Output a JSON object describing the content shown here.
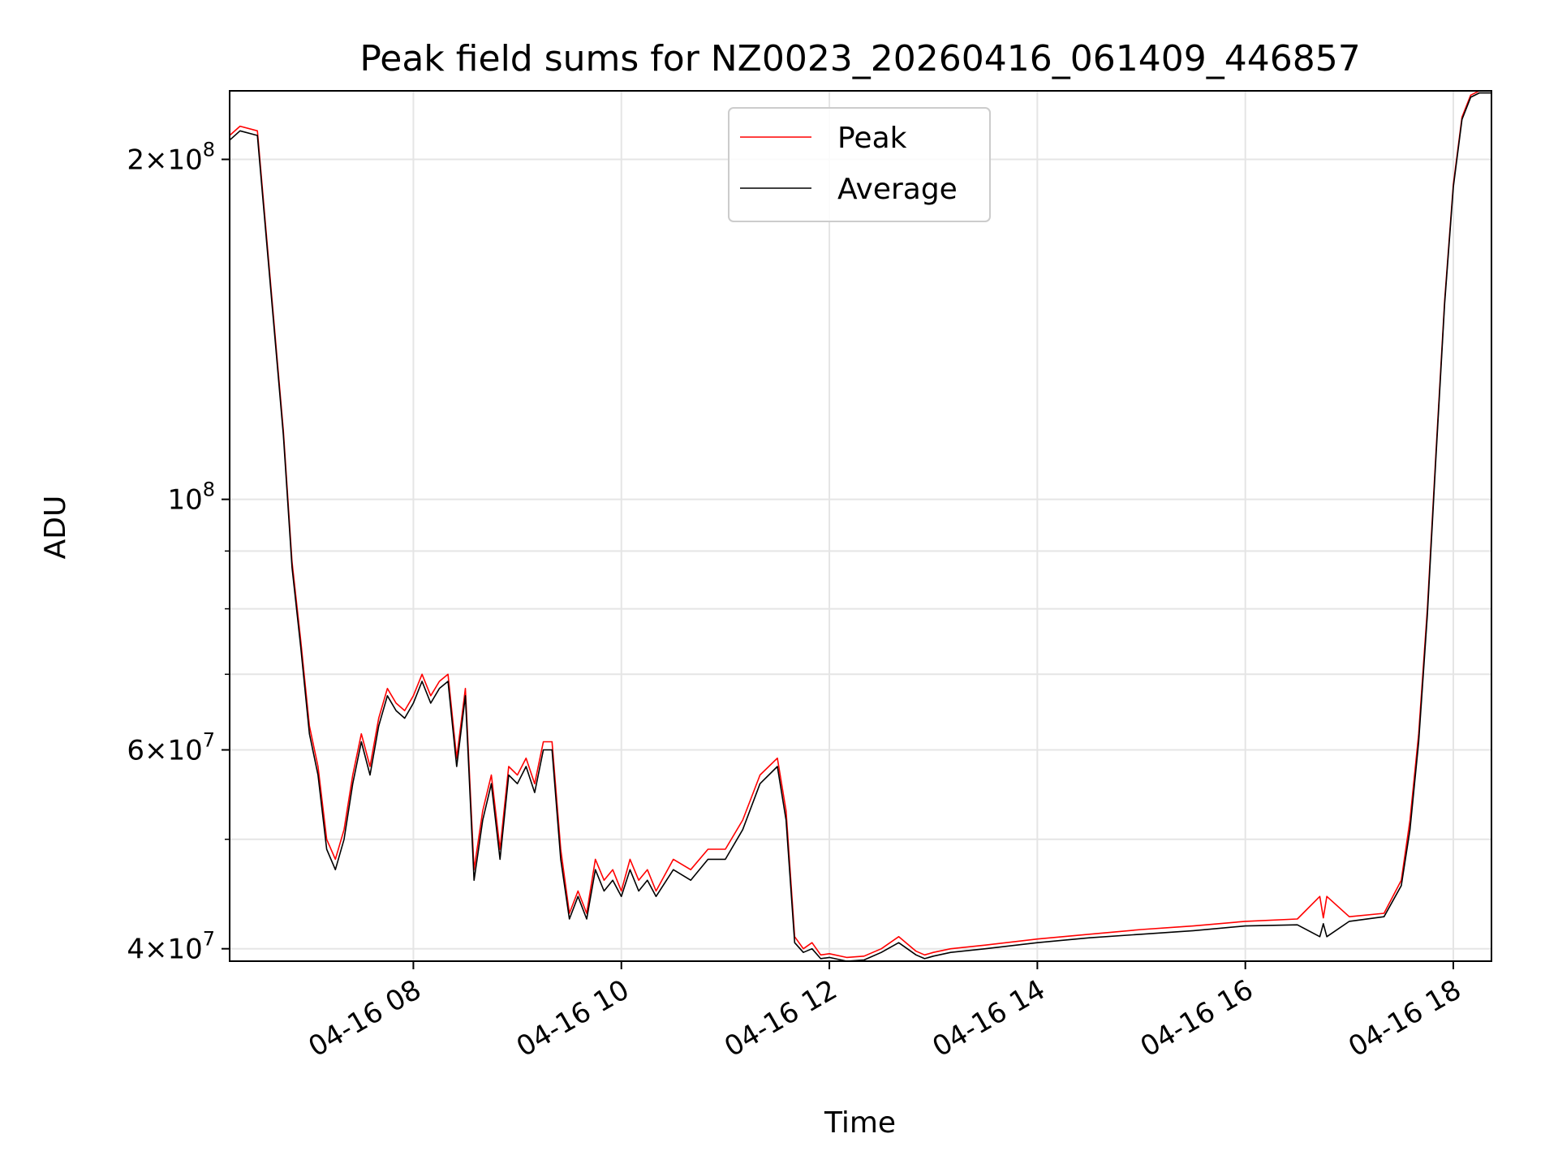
{
  "chart_data": {
    "type": "line",
    "title": "Peak field sums for NZ0023_20260416_061409_446857",
    "xlabel": "Time",
    "ylabel": "ADU",
    "yscale": "log",
    "grid": true,
    "legend_position": "top-center",
    "xlim": [
      "2026-04-16 06:14",
      "2026-04-16 18:22"
    ],
    "ylim": [
      39000000,
      230000000
    ],
    "x_ticks": [
      "04-16 08",
      "04-16 10",
      "04-16 12",
      "04-16 14",
      "04-16 16",
      "04-16 18"
    ],
    "x_tick_times": [
      "2026-04-16 08:00",
      "2026-04-16 10:00",
      "2026-04-16 12:00",
      "2026-04-16 14:00",
      "2026-04-16 16:00",
      "2026-04-16 18:00"
    ],
    "y_ticks": [
      {
        "value": 40000000,
        "mantissa": "4",
        "exp": "7"
      },
      {
        "value": 60000000,
        "mantissa": "6",
        "exp": "7"
      },
      {
        "value": 100000000,
        "mantissa": "",
        "exp": "8"
      },
      {
        "value": 200000000,
        "mantissa": "2",
        "exp": "8"
      }
    ],
    "y_minor_ticks": [
      50000000,
      70000000,
      80000000,
      90000000
    ],
    "series": [
      {
        "name": "Peak",
        "color": "#ff0000",
        "x": [
          "06:14",
          "06:20",
          "06:30",
          "06:45",
          "06:50",
          "06:55",
          "07:00",
          "07:05",
          "07:10",
          "07:15",
          "07:20",
          "07:25",
          "07:30",
          "07:35",
          "07:40",
          "07:45",
          "07:50",
          "07:55",
          "08:00",
          "08:05",
          "08:10",
          "08:15",
          "08:20",
          "08:25",
          "08:30",
          "08:35",
          "08:40",
          "08:45",
          "08:50",
          "08:55",
          "09:00",
          "09:05",
          "09:10",
          "09:15",
          "09:20",
          "09:25",
          "09:30",
          "09:35",
          "09:40",
          "09:45",
          "09:50",
          "09:55",
          "10:00",
          "10:05",
          "10:10",
          "10:15",
          "10:20",
          "10:30",
          "10:40",
          "10:50",
          "11:00",
          "11:10",
          "11:20",
          "11:30",
          "11:35",
          "11:40",
          "11:45",
          "11:50",
          "11:55",
          "12:00",
          "12:10",
          "12:20",
          "12:30",
          "12:40",
          "12:50",
          "12:55",
          "13:00",
          "13:10",
          "13:30",
          "14:00",
          "14:30",
          "15:00",
          "15:30",
          "16:00",
          "16:30",
          "16:43",
          "16:45",
          "16:47",
          "17:00",
          "17:20",
          "17:30",
          "17:35",
          "17:40",
          "17:45",
          "17:50",
          "17:55",
          "18:00",
          "18:05",
          "18:10",
          "18:15",
          "18:22"
        ],
        "y": [
          210000000,
          214000000,
          212000000,
          115000000,
          88000000,
          75000000,
          63000000,
          58000000,
          50000000,
          48000000,
          51000000,
          57000000,
          62000000,
          58000000,
          64000000,
          68000000,
          66000000,
          65000000,
          67000000,
          70000000,
          67000000,
          69000000,
          70000000,
          59000000,
          68000000,
          47000000,
          53000000,
          57000000,
          49000000,
          58000000,
          57000000,
          59000000,
          56000000,
          61000000,
          61000000,
          49000000,
          43000000,
          45000000,
          43000000,
          48000000,
          46000000,
          47000000,
          45000000,
          48000000,
          46000000,
          47000000,
          45000000,
          48000000,
          47000000,
          49000000,
          49000000,
          52000000,
          57000000,
          59000000,
          53000000,
          41000000,
          40000000,
          40500000,
          39500000,
          39600000,
          39300000,
          39400000,
          40000000,
          41000000,
          39800000,
          39500000,
          39700000,
          40000000,
          40300000,
          40800000,
          41200000,
          41600000,
          41900000,
          42300000,
          42500000,
          44500000,
          42600000,
          44500000,
          42700000,
          43000000,
          46000000,
          52000000,
          62000000,
          80000000,
          110000000,
          150000000,
          190000000,
          218000000,
          228000000,
          230000000,
          230000000
        ]
      },
      {
        "name": "Average",
        "color": "#000000",
        "x": [
          "06:14",
          "06:20",
          "06:30",
          "06:45",
          "06:50",
          "06:55",
          "07:00",
          "07:05",
          "07:10",
          "07:15",
          "07:20",
          "07:25",
          "07:30",
          "07:35",
          "07:40",
          "07:45",
          "07:50",
          "07:55",
          "08:00",
          "08:05",
          "08:10",
          "08:15",
          "08:20",
          "08:25",
          "08:30",
          "08:35",
          "08:40",
          "08:45",
          "08:50",
          "08:55",
          "09:00",
          "09:05",
          "09:10",
          "09:15",
          "09:20",
          "09:25",
          "09:30",
          "09:35",
          "09:40",
          "09:45",
          "09:50",
          "09:55",
          "10:00",
          "10:05",
          "10:10",
          "10:15",
          "10:20",
          "10:30",
          "10:40",
          "10:50",
          "11:00",
          "11:10",
          "11:20",
          "11:30",
          "11:35",
          "11:40",
          "11:45",
          "11:50",
          "11:55",
          "12:00",
          "12:10",
          "12:20",
          "12:30",
          "12:40",
          "12:50",
          "12:55",
          "13:00",
          "13:10",
          "13:30",
          "14:00",
          "14:30",
          "15:00",
          "15:30",
          "16:00",
          "16:30",
          "16:43",
          "16:45",
          "16:47",
          "17:00",
          "17:20",
          "17:30",
          "17:35",
          "17:40",
          "17:45",
          "17:50",
          "17:55",
          "18:00",
          "18:05",
          "18:10",
          "18:15",
          "18:22"
        ],
        "y": [
          208000000,
          212000000,
          210000000,
          114000000,
          87000000,
          74000000,
          62000000,
          57000000,
          49000000,
          47000000,
          50000000,
          56000000,
          61000000,
          57000000,
          63000000,
          67000000,
          65000000,
          64000000,
          66000000,
          69000000,
          66000000,
          68000000,
          69000000,
          58000000,
          67000000,
          46000000,
          52000000,
          56000000,
          48000000,
          57000000,
          56000000,
          58000000,
          55000000,
          60000000,
          60000000,
          48000000,
          42500000,
          44500000,
          42500000,
          47000000,
          45000000,
          46000000,
          44500000,
          47000000,
          45000000,
          46000000,
          44500000,
          47000000,
          46000000,
          48000000,
          48000000,
          51000000,
          56000000,
          58000000,
          52000000,
          40500000,
          39700000,
          40000000,
          39200000,
          39300000,
          39000000,
          39100000,
          39700000,
          40500000,
          39500000,
          39200000,
          39400000,
          39700000,
          40000000,
          40500000,
          40900000,
          41200000,
          41500000,
          41900000,
          42000000,
          41000000,
          42100000,
          41000000,
          42300000,
          42700000,
          45500000,
          51000000,
          61000000,
          79000000,
          109000000,
          149000000,
          189000000,
          217000000,
          227000000,
          229000000,
          229000000
        ]
      }
    ]
  }
}
